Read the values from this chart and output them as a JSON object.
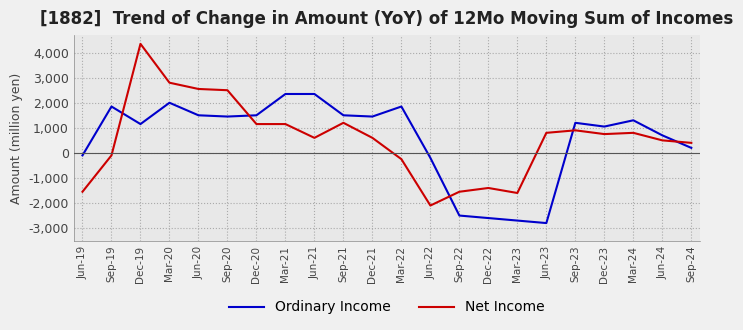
{
  "title": "[1882]  Trend of Change in Amount (YoY) of 12Mo Moving Sum of Incomes",
  "ylabel": "Amount (million yen)",
  "x_labels": [
    "Jun-19",
    "Sep-19",
    "Dec-19",
    "Mar-20",
    "Jun-20",
    "Sep-20",
    "Dec-20",
    "Mar-21",
    "Jun-21",
    "Sep-21",
    "Dec-21",
    "Mar-22",
    "Jun-22",
    "Sep-22",
    "Dec-22",
    "Mar-23",
    "Jun-23",
    "Sep-23",
    "Dec-23",
    "Mar-24",
    "Jun-24",
    "Sep-24"
  ],
  "ordinary_income": [
    -100,
    1850,
    1150,
    2000,
    1500,
    1450,
    1500,
    2350,
    2350,
    1500,
    1450,
    1850,
    -200,
    -2500,
    -2600,
    -2700,
    -2800,
    1200,
    1050,
    1300,
    700,
    200
  ],
  "net_income": [
    -1550,
    -100,
    4350,
    2800,
    2550,
    2500,
    1150,
    1150,
    600,
    1200,
    600,
    -250,
    -2100,
    -1550,
    -1400,
    -1600,
    800,
    900,
    750,
    800,
    500,
    400
  ],
  "ordinary_color": "#0000cc",
  "net_color": "#cc0000",
  "ylim": [
    -3500,
    4700
  ],
  "yticks": [
    -3000,
    -2000,
    -1000,
    0,
    1000,
    2000,
    3000,
    4000
  ],
  "bg_color": "#f0f0f0",
  "plot_bg_color": "#e8e8e8",
  "grid_color": "#aaaaaa",
  "title_fontsize": 12,
  "axis_fontsize": 9,
  "legend_fontsize": 10
}
